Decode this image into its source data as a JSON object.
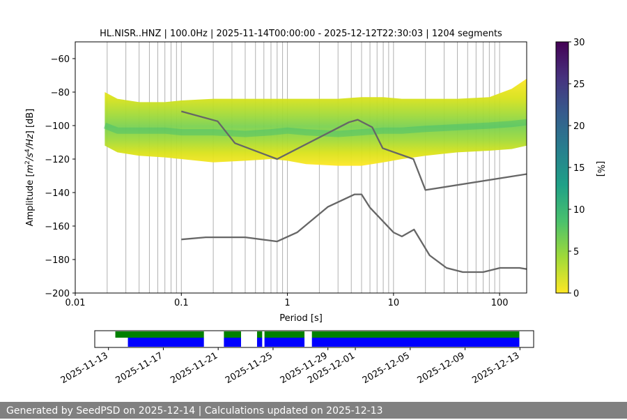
{
  "chart_data": [
    {
      "type": "heatmap",
      "title": "HL.NISR..HNZ | 100.0Hz | 2025-11-14T00:00:00 - 2025-12-12T22:30:03 | 1204 segments",
      "xlabel": "Period [s]",
      "ylabel_parts": [
        "Amplitude [",
        "m",
        "2",
        "/s",
        "4",
        "/Hz",
        "] [dB]"
      ],
      "x_scale": "log",
      "xlim": [
        0.01,
        180
      ],
      "ylim": [
        -200,
        -50
      ],
      "x_ticks": [
        0.01,
        0.1,
        1,
        10,
        100
      ],
      "x_tick_labels": [
        "0.01",
        "0.1",
        "1",
        "10",
        "100"
      ],
      "y_ticks": [
        -200,
        -180,
        -160,
        -140,
        -120,
        -100,
        -80,
        -60
      ],
      "y_tick_labels": [
        "−200",
        "−180",
        "−160",
        "−140",
        "−120",
        "−100",
        "−80",
        "−60"
      ],
      "vertical_grid_periods": [
        0.02,
        0.03,
        0.04,
        0.05,
        0.06,
        0.07,
        0.08,
        0.09,
        0.1,
        0.2,
        0.3,
        0.4,
        0.5,
        0.6,
        0.7,
        0.8,
        0.9,
        1,
        2,
        3,
        4,
        5,
        6,
        7,
        8,
        9,
        10,
        20,
        30,
        40,
        50,
        60,
        70,
        80,
        90,
        100
      ],
      "psd_band": {
        "period": [
          0.019,
          0.025,
          0.04,
          0.07,
          0.1,
          0.2,
          0.4,
          0.7,
          1,
          1.5,
          3,
          5,
          8,
          12,
          20,
          40,
          80,
          130,
          180
        ],
        "lower": [
          -112,
          -116,
          -118,
          -119,
          -120,
          -122,
          -121,
          -120,
          -121,
          -123,
          -124,
          -124,
          -122,
          -120,
          -118,
          -116,
          -115,
          -114,
          -112
        ],
        "upper": [
          -80,
          -84,
          -86,
          -86,
          -85,
          -84,
          -84,
          -84,
          -84,
          -84,
          -84,
          -83,
          -83,
          -84,
          -84,
          -84,
          -83,
          -78,
          -72
        ],
        "mode": [
          -100,
          -103,
          -103,
          -103,
          -104,
          -104,
          -105,
          -104,
          -103,
          -104,
          -105,
          -104,
          -103,
          -103,
          -102,
          -101,
          -100,
          -99,
          -98
        ]
      },
      "high_noise_model": {
        "period": [
          0.1,
          0.22,
          0.32,
          0.8,
          3.8,
          4.6,
          6.3,
          7.9,
          15.4,
          20,
          354.8
        ],
        "db": [
          -91.5,
          -97.4,
          -110.5,
          -120,
          -98,
          -96.5,
          -101,
          -113.5,
          -120,
          -138.5,
          -126
        ]
      },
      "low_noise_model": {
        "period": [
          0.1,
          0.17,
          0.4,
          0.8,
          1.24,
          2.4,
          4.3,
          5,
          6,
          10,
          12,
          15.6,
          21.9,
          31.6,
          45,
          70,
          101,
          154,
          180
        ],
        "db": [
          -168,
          -166.7,
          -166.7,
          -169.2,
          -163.7,
          -148.6,
          -141.1,
          -141.1,
          -149,
          -163.8,
          -166.2,
          -162.1,
          -177.5,
          -185,
          -187.5,
          -187.5,
          -185,
          -185,
          -185.7
        ]
      },
      "colorbar": {
        "label": "[%]",
        "range": [
          0,
          30
        ],
        "ticks": [
          0,
          5,
          10,
          15,
          20,
          25,
          30
        ],
        "tick_labels": [
          "0",
          "5",
          "10",
          "15",
          "20",
          "25",
          "30"
        ],
        "colormap": [
          "#440154",
          "#46327e",
          "#365c8d",
          "#277f8e",
          "#1fa187",
          "#4ac16d",
          "#a0da39",
          "#fde725"
        ]
      },
      "colors": {
        "noise_model": "#666666",
        "grid": "#b0b0b0"
      }
    },
    {
      "type": "timeline",
      "xlim": [
        "2025-11-12",
        "2025-12-14"
      ],
      "tick_labels": [
        "2025-11-13",
        "2025-11-17",
        "2025-11-21",
        "2025-11-25",
        "2025-11-29",
        "2025-12-01",
        "2025-12-05",
        "2025-12-09",
        "2025-12-13"
      ],
      "green_bars": [
        [
          "2025-11-13T12:00",
          "2025-11-19T23:00"
        ],
        [
          "2025-11-21T10:00",
          "2025-11-22T16:00"
        ],
        [
          "2025-11-23T20:00",
          "2025-11-24T05:00"
        ],
        [
          "2025-11-24T09:00",
          "2025-11-27T07:00"
        ],
        [
          "2025-11-27T20:00",
          "2025-12-12T23:00"
        ]
      ],
      "blue_bars": [
        [
          "2025-11-14T10:00",
          "2025-11-19T23:00"
        ],
        [
          "2025-11-21T10:00",
          "2025-11-22T16:00"
        ],
        [
          "2025-11-23T20:00",
          "2025-11-24T05:00"
        ],
        [
          "2025-11-24T09:00",
          "2025-11-27T07:00"
        ],
        [
          "2025-11-27T20:00",
          "2025-12-12T23:00"
        ]
      ],
      "colors": {
        "green": "#008000",
        "blue": "#0000ff"
      }
    }
  ],
  "footer": {
    "text": "Generated by SeedPSD on 2025-12-14 | Calculations updated on 2025-12-13"
  }
}
